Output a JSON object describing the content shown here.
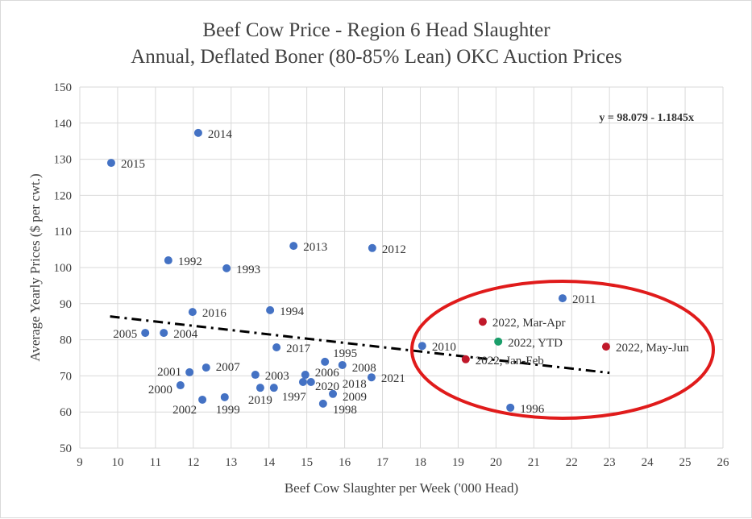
{
  "chart_data": {
    "type": "scatter",
    "title": "Beef Cow Price - Region 6 Head Slaughter",
    "subtitle": "Annual, Deflated Boner (80-85% Lean) OKC Auction Prices",
    "xlabel": "Beef Cow Slaughter per Week ('000 Head)",
    "ylabel": "Average Yearly Prices ($ per cwt.)",
    "xlim": [
      9,
      26
    ],
    "ylim": [
      50,
      150
    ],
    "xticks": [
      9,
      10,
      11,
      12,
      13,
      14,
      15,
      16,
      17,
      18,
      19,
      20,
      21,
      22,
      23,
      24,
      25,
      26
    ],
    "yticks": [
      50,
      60,
      70,
      80,
      90,
      100,
      110,
      120,
      130,
      140,
      150
    ],
    "grid": true,
    "trendline": {
      "equation": "y = 98.079 - 1.1845x",
      "intercept": 98.079,
      "slope": -1.1845,
      "x_range": [
        9.8,
        23
      ],
      "style": "dash-dot",
      "color": "#000000"
    },
    "highlight": {
      "shape": "ellipse",
      "color": "#e01b1b"
    },
    "colors": {
      "annual": "#4472c4",
      "partial_2022": "#c0182a",
      "ytd": "#1a9e6a"
    },
    "points": [
      {
        "label": "2015",
        "x": 9.83,
        "y": 129.0,
        "group": "annual"
      },
      {
        "label": "2014",
        "x": 12.13,
        "y": 137.3,
        "group": "annual"
      },
      {
        "label": "1992",
        "x": 11.34,
        "y": 102.0,
        "group": "annual"
      },
      {
        "label": "1993",
        "x": 12.88,
        "y": 99.8,
        "group": "annual"
      },
      {
        "label": "2013",
        "x": 14.65,
        "y": 106.0,
        "group": "annual"
      },
      {
        "label": "2012",
        "x": 16.73,
        "y": 105.4,
        "group": "annual"
      },
      {
        "label": "2011",
        "x": 21.76,
        "y": 91.5,
        "group": "annual"
      },
      {
        "label": "2016",
        "x": 11.98,
        "y": 87.7,
        "group": "annual"
      },
      {
        "label": "1994",
        "x": 14.03,
        "y": 88.2,
        "group": "annual"
      },
      {
        "label": "2005",
        "x": 10.73,
        "y": 81.9,
        "group": "annual"
      },
      {
        "label": "2004",
        "x": 11.22,
        "y": 81.9,
        "group": "annual"
      },
      {
        "label": "2017",
        "x": 14.2,
        "y": 77.9,
        "group": "annual"
      },
      {
        "label": "2010",
        "x": 18.05,
        "y": 78.3,
        "group": "annual"
      },
      {
        "label": "1996",
        "x": 20.38,
        "y": 61.2,
        "group": "annual"
      },
      {
        "label": "2007",
        "x": 12.34,
        "y": 72.3,
        "group": "annual"
      },
      {
        "label": "2001",
        "x": 11.9,
        "y": 71.0,
        "group": "annual"
      },
      {
        "label": "2000",
        "x": 11.66,
        "y": 67.4,
        "group": "annual"
      },
      {
        "label": "2002",
        "x": 12.24,
        "y": 63.4,
        "group": "annual"
      },
      {
        "label": "1999",
        "x": 12.83,
        "y": 64.1,
        "group": "annual"
      },
      {
        "label": "2003",
        "x": 13.64,
        "y": 70.3,
        "group": "annual"
      },
      {
        "label": "2019",
        "x": 13.77,
        "y": 66.7,
        "group": "annual"
      },
      {
        "label": "1997",
        "x": 14.13,
        "y": 66.7,
        "group": "annual"
      },
      {
        "label": "2006",
        "x": 14.96,
        "y": 70.3,
        "group": "annual"
      },
      {
        "label": "2020",
        "x": 14.9,
        "y": 68.3,
        "group": "annual"
      },
      {
        "label": "2018",
        "x": 15.11,
        "y": 68.3,
        "group": "annual"
      },
      {
        "label": "1995",
        "x": 15.48,
        "y": 73.9,
        "group": "annual"
      },
      {
        "label": "2008",
        "x": 15.94,
        "y": 73.0,
        "group": "annual"
      },
      {
        "label": "2021",
        "x": 16.71,
        "y": 69.6,
        "group": "annual"
      },
      {
        "label": "2009",
        "x": 15.69,
        "y": 65.0,
        "group": "annual"
      },
      {
        "label": "1998",
        "x": 15.43,
        "y": 62.3,
        "group": "annual"
      },
      {
        "label": "2022, Mar-Apr",
        "x": 19.65,
        "y": 85.0,
        "group": "partial_2022"
      },
      {
        "label": "2022, YTD",
        "x": 20.06,
        "y": 79.5,
        "group": "ytd"
      },
      {
        "label": "2022, May-Jun",
        "x": 22.91,
        "y": 78.1,
        "group": "partial_2022"
      },
      {
        "label": "2022, Jan-Feb",
        "x": 19.2,
        "y": 74.6,
        "group": "partial_2022"
      }
    ]
  }
}
